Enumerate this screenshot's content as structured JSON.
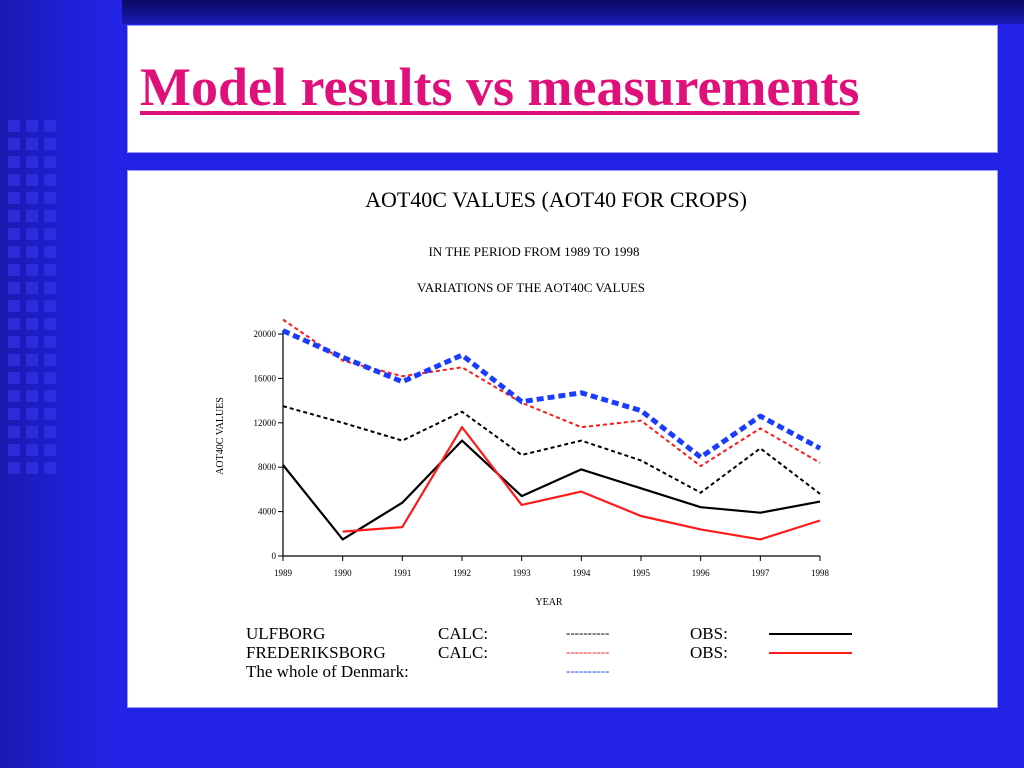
{
  "slide": {
    "title": "Model results vs measurements",
    "colors": {
      "background": "#2222e6",
      "title": "#e0107a"
    }
  },
  "chart_data": {
    "type": "line",
    "title": "AOT40C VALUES (AOT40 FOR CROPS)",
    "subtitle_1": "IN THE PERIOD FROM 1989 TO 1998",
    "subtitle_2": "VARIATIONS OF THE AOT40C VALUES",
    "xlabel": "YEAR",
    "ylabel": "AOT40C VALUES",
    "ylim": [
      0,
      20000
    ],
    "yticks": [
      0,
      4000,
      8000,
      12000,
      16000,
      20000
    ],
    "ytick_labels": [
      "0",
      "4000",
      "8000",
      "12000",
      "16000",
      "20000"
    ],
    "x": [
      "1989",
      "1990",
      "1991",
      "1992",
      "1993",
      "1994",
      "1995",
      "1996",
      "1997",
      "1998"
    ],
    "series": [
      {
        "key": "ulfborg_calc",
        "color": "#000000",
        "style": "dashed",
        "values": [
          13500,
          12000,
          10400,
          13000,
          9100,
          10400,
          8600,
          5700,
          9700,
          5600
        ]
      },
      {
        "key": "ulfborg_obs",
        "color": "#000000",
        "style": "solid",
        "values": [
          8200,
          1500,
          4800,
          10400,
          5400,
          7800,
          6100,
          4400,
          3900,
          4900
        ]
      },
      {
        "key": "frederiksborg_calc",
        "color": "#ff1a1a",
        "style": "dashed",
        "values": [
          21300,
          17600,
          16200,
          17000,
          13800,
          11600,
          12200,
          8100,
          11500,
          8400
        ]
      },
      {
        "key": "frederiksborg_obs",
        "color": "#ff1a1a",
        "style": "solid",
        "start_index": 1,
        "values": [
          null,
          2200,
          2600,
          11600,
          4600,
          5800,
          3600,
          2400,
          1500,
          3200
        ]
      },
      {
        "key": "denmark_calc",
        "color": "#1a3cff",
        "style": "thick-dashed",
        "values": [
          20300,
          17900,
          15700,
          18100,
          13900,
          14700,
          13100,
          8900,
          12600,
          9700
        ]
      }
    ],
    "legend": {
      "rows": [
        {
          "name": "ULFBORG",
          "calc_label": "CALC:",
          "calc_line": "----------",
          "obs_label": "OBS:"
        },
        {
          "name": "FREDERIKSBORG",
          "calc_label": "CALC:",
          "calc_line": "----------",
          "obs_label": "OBS:"
        },
        {
          "name": "The whole of Denmark:",
          "calc_label": "",
          "calc_line": "----------",
          "obs_label": ""
        }
      ]
    },
    "grid": false
  }
}
